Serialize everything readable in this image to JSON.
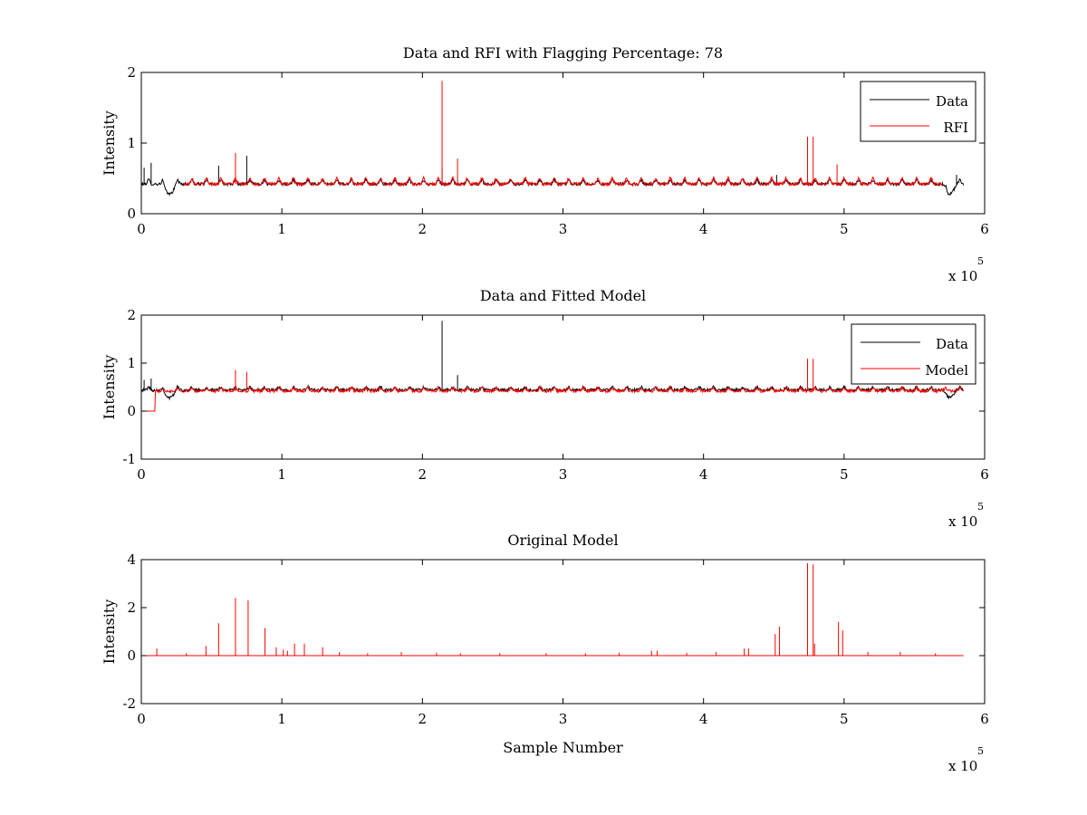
{
  "figure": {
    "background": "#ffffff"
  },
  "colors": {
    "data": "#000000",
    "rfi": "#ff0000",
    "model": "#ff0000"
  },
  "chart_data": [
    {
      "type": "line",
      "title": "Data and RFI with Flagging Percentage: 78",
      "xlabel": "",
      "ylabel": "Intensity",
      "xlim": [
        0,
        6
      ],
      "ylim": [
        0,
        2
      ],
      "xticks": [
        "0",
        "1",
        "2",
        "3",
        "4",
        "5",
        "6"
      ],
      "yticks": [
        "0",
        "1",
        "2"
      ],
      "x_scale_label": "x 10",
      "x_scale_exponent": "5",
      "legend": {
        "position": "top-right",
        "entries": [
          "Data",
          "RFI"
        ]
      },
      "series": [
        {
          "name": "Data",
          "color": "#000000",
          "baseline": 0.42,
          "x_range": [
            0,
            5.85
          ],
          "spikes": [
            [
              0.02,
              0.65
            ],
            [
              0.07,
              0.72
            ],
            [
              0.55,
              0.68
            ],
            [
              0.75,
              0.82
            ],
            [
              2.14,
              0.65
            ],
            [
              4.52,
              0.55
            ],
            [
              5.8,
              0.55
            ]
          ],
          "dips": [
            [
              0.2,
              0.28
            ],
            [
              5.75,
              0.28
            ]
          ]
        },
        {
          "name": "RFI",
          "color": "#ff0000",
          "baseline": 0.42,
          "x_range": [
            0.3,
            5.7
          ],
          "spikes": [
            [
              0.67,
              0.86
            ],
            [
              2.14,
              1.88
            ],
            [
              2.25,
              0.78
            ],
            [
              4.74,
              1.09
            ],
            [
              4.78,
              1.09
            ],
            [
              4.95,
              0.7
            ]
          ]
        }
      ]
    },
    {
      "type": "line",
      "title": "Data and Fitted Model",
      "xlabel": "",
      "ylabel": "Intensity",
      "xlim": [
        0,
        6
      ],
      "ylim": [
        -1,
        2
      ],
      "xticks": [
        "0",
        "1",
        "2",
        "3",
        "4",
        "5",
        "6"
      ],
      "yticks": [
        "-1",
        "0",
        "1",
        "2"
      ],
      "x_scale_label": "x 10",
      "x_scale_exponent": "5",
      "legend": {
        "position": "top-right",
        "entries": [
          "Data",
          "Model"
        ]
      },
      "series": [
        {
          "name": "Data",
          "color": "#000000",
          "baseline": 0.44,
          "x_range": [
            0,
            5.85
          ],
          "spikes": [
            [
              0.02,
              0.65
            ],
            [
              0.07,
              0.68
            ],
            [
              2.14,
              1.88
            ],
            [
              2.25,
              0.75
            ]
          ],
          "dips": [
            [
              0.2,
              0.28
            ],
            [
              5.75,
              0.28
            ]
          ]
        },
        {
          "name": "Model",
          "color": "#ff0000",
          "baseline": 0.42,
          "x_range": [
            0,
            5.85
          ],
          "zero_segment": [
            0,
            0.1
          ],
          "spikes": [
            [
              0.67,
              0.86
            ],
            [
              0.75,
              0.82
            ],
            [
              4.74,
              1.09
            ],
            [
              4.78,
              1.09
            ]
          ]
        }
      ]
    },
    {
      "type": "line",
      "title": "Original Model",
      "xlabel": "Sample Number",
      "ylabel": "Intensity",
      "xlim": [
        0,
        6
      ],
      "ylim": [
        -2,
        4
      ],
      "xticks": [
        "0",
        "1",
        "2",
        "3",
        "4",
        "5",
        "6"
      ],
      "yticks": [
        "-2",
        "0",
        "2",
        "4"
      ],
      "x_scale_label": "x 10",
      "x_scale_exponent": "5",
      "series": [
        {
          "name": "Original Model",
          "color": "#ff0000",
          "baseline": 0,
          "x_range": [
            0,
            5.85
          ],
          "spikes": [
            [
              0.11,
              0.3
            ],
            [
              0.32,
              0.1
            ],
            [
              0.46,
              0.4
            ],
            [
              0.55,
              1.35
            ],
            [
              0.67,
              2.4
            ],
            [
              0.76,
              2.3
            ],
            [
              0.88,
              1.15
            ],
            [
              0.96,
              0.35
            ],
            [
              1.01,
              0.25
            ],
            [
              1.04,
              0.2
            ],
            [
              1.09,
              0.5
            ],
            [
              1.16,
              0.5
            ],
            [
              1.29,
              0.35
            ],
            [
              1.41,
              0.15
            ],
            [
              1.61,
              0.1
            ],
            [
              1.85,
              0.15
            ],
            [
              2.1,
              0.12
            ],
            [
              2.27,
              0.1
            ],
            [
              2.55,
              0.1
            ],
            [
              2.88,
              0.1
            ],
            [
              3.16,
              0.1
            ],
            [
              3.4,
              0.12
            ],
            [
              3.63,
              0.2
            ],
            [
              3.67,
              0.2
            ],
            [
              3.88,
              0.12
            ],
            [
              4.09,
              0.15
            ],
            [
              4.29,
              0.3
            ],
            [
              4.32,
              0.3
            ],
            [
              4.51,
              0.9
            ],
            [
              4.54,
              1.2
            ],
            [
              4.74,
              3.85
            ],
            [
              4.78,
              3.8
            ],
            [
              4.79,
              0.5
            ],
            [
              4.96,
              1.4
            ],
            [
              4.99,
              1.05
            ],
            [
              5.17,
              0.15
            ],
            [
              5.4,
              0.15
            ],
            [
              5.65,
              0.1
            ]
          ]
        }
      ]
    }
  ]
}
